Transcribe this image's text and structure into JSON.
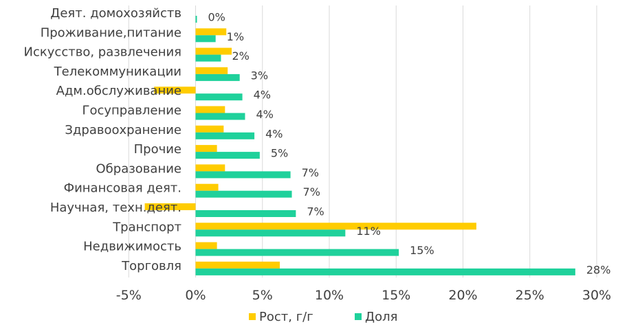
{
  "chart_data": {
    "type": "bar",
    "orientation": "horizontal",
    "title": "",
    "xlabel": "",
    "ylabel": "",
    "categories": [
      "Деят. домохозяйств",
      "Проживание,питание",
      "Искусство, развлечения",
      "Телекоммуникации",
      "Адм.обслуживание",
      "Госуправление",
      "Здравоохранение",
      "Прочие",
      "Образование",
      "Финансовая деят.",
      "Научная, техн.деят.",
      "Транспорт",
      "Недвижимость",
      "Торговля"
    ],
    "series": [
      {
        "name": "Рост, г/г",
        "color": "#ffcc00",
        "values": [
          0.0,
          2.3,
          2.7,
          2.4,
          -3.1,
          2.2,
          2.1,
          1.6,
          2.2,
          1.7,
          -3.8,
          21.0,
          1.6,
          6.3
        ]
      },
      {
        "name": "Доля",
        "color": "#1fd19b",
        "values": [
          0.1,
          1.5,
          1.9,
          3.3,
          3.5,
          3.7,
          4.4,
          4.8,
          7.1,
          7.2,
          7.5,
          11.2,
          15.2,
          28.4
        ],
        "data_labels": [
          "0%",
          "1%",
          "2%",
          "3%",
          "4%",
          "4%",
          "4%",
          "5%",
          "7%",
          "7%",
          "7%",
          "11%",
          "15%",
          "28%"
        ]
      }
    ],
    "xlim": [
      -5,
      30
    ],
    "xticks": [
      -5,
      0,
      5,
      10,
      15,
      20,
      25,
      30
    ],
    "xtick_labels": [
      "-5%",
      "0%",
      "5%",
      "10%",
      "15%",
      "20%",
      "25%",
      "30%"
    ],
    "grid": true,
    "legend_position": "bottom"
  }
}
